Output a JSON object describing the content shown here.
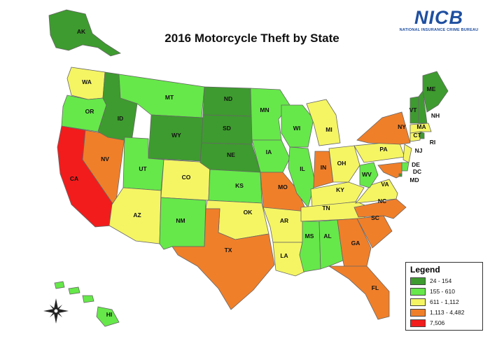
{
  "title": "2016 Motorcycle Theft by State",
  "logo": {
    "word": "NICB",
    "subtitle": "NATIONAL INSURANCE CRIME BUREAU"
  },
  "legend": {
    "title": "Legend",
    "items": [
      {
        "label": "24 - 154",
        "color": "#3e9b2f"
      },
      {
        "label": "155 - 610",
        "color": "#66e84a"
      },
      {
        "label": "611 - 1,112",
        "color": "#f5f564"
      },
      {
        "label": "1,113 - 4,482",
        "color": "#f07f2a"
      },
      {
        "label": "7,506",
        "color": "#f21c1c"
      }
    ]
  },
  "compass": {
    "icon": "compass-rose-icon"
  },
  "states": [
    {
      "abbr": "AK",
      "bucket": 0
    },
    {
      "abbr": "WA",
      "bucket": 2
    },
    {
      "abbr": "OR",
      "bucket": 1
    },
    {
      "abbr": "CA",
      "bucket": 4
    },
    {
      "abbr": "NV",
      "bucket": 3
    },
    {
      "abbr": "ID",
      "bucket": 0
    },
    {
      "abbr": "MT",
      "bucket": 1
    },
    {
      "abbr": "WY",
      "bucket": 0
    },
    {
      "abbr": "UT",
      "bucket": 1
    },
    {
      "abbr": "AZ",
      "bucket": 2
    },
    {
      "abbr": "CO",
      "bucket": 2
    },
    {
      "abbr": "NM",
      "bucket": 1
    },
    {
      "abbr": "ND",
      "bucket": 0
    },
    {
      "abbr": "SD",
      "bucket": 0
    },
    {
      "abbr": "NE",
      "bucket": 0
    },
    {
      "abbr": "KS",
      "bucket": 1
    },
    {
      "abbr": "OK",
      "bucket": 2
    },
    {
      "abbr": "TX",
      "bucket": 3
    },
    {
      "abbr": "MN",
      "bucket": 1
    },
    {
      "abbr": "IA",
      "bucket": 1
    },
    {
      "abbr": "MO",
      "bucket": 3
    },
    {
      "abbr": "AR",
      "bucket": 2
    },
    {
      "abbr": "LA",
      "bucket": 2
    },
    {
      "abbr": "WI",
      "bucket": 1
    },
    {
      "abbr": "IL",
      "bucket": 1
    },
    {
      "abbr": "MI",
      "bucket": 2
    },
    {
      "abbr": "IN",
      "bucket": 3
    },
    {
      "abbr": "OH",
      "bucket": 2
    },
    {
      "abbr": "KY",
      "bucket": 2
    },
    {
      "abbr": "TN",
      "bucket": 2
    },
    {
      "abbr": "MS",
      "bucket": 1
    },
    {
      "abbr": "AL",
      "bucket": 1
    },
    {
      "abbr": "GA",
      "bucket": 3
    },
    {
      "abbr": "FL",
      "bucket": 3
    },
    {
      "abbr": "SC",
      "bucket": 3
    },
    {
      "abbr": "NC",
      "bucket": 3
    },
    {
      "abbr": "VA",
      "bucket": 2
    },
    {
      "abbr": "WV",
      "bucket": 1
    },
    {
      "abbr": "PA",
      "bucket": 2
    },
    {
      "abbr": "NY",
      "bucket": 3
    },
    {
      "abbr": "NJ",
      "bucket": 2
    },
    {
      "abbr": "DE",
      "bucket": 1
    },
    {
      "abbr": "MD",
      "bucket": 3
    },
    {
      "abbr": "DC",
      "bucket": 0
    },
    {
      "abbr": "CT",
      "bucket": 2
    },
    {
      "abbr": "RI",
      "bucket": 0
    },
    {
      "abbr": "MA",
      "bucket": 2
    },
    {
      "abbr": "VT",
      "bucket": 0
    },
    {
      "abbr": "NH",
      "bucket": 0
    },
    {
      "abbr": "ME",
      "bucket": 0
    },
    {
      "abbr": "HI",
      "bucket": 1
    }
  ]
}
